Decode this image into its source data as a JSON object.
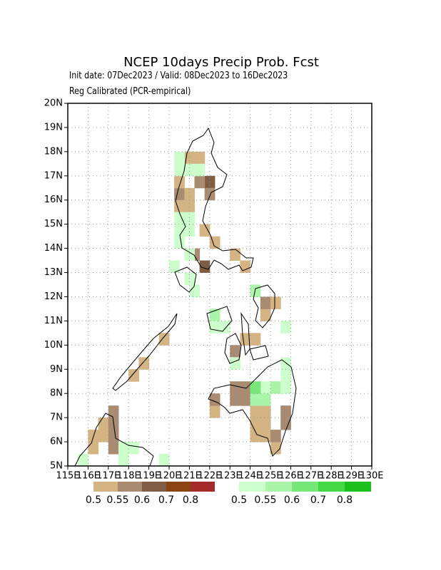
{
  "chart_data": {
    "type": "gridmap",
    "title": "NCEP 10days Precip Prob. Fcst",
    "subtitle": "Init date: 07Dec2023 / Valid: 08Dec2023 to 16Dec2023",
    "subtitle2": "Reg Calibrated (PCR-empirical)",
    "xlim": [
      115,
      130
    ],
    "ylim": [
      5,
      20
    ],
    "xticks": [
      {
        "value": 115,
        "label": "115E"
      },
      {
        "value": 116,
        "label": "116E"
      },
      {
        "value": 117,
        "label": "117E"
      },
      {
        "value": 118,
        "label": "118E"
      },
      {
        "value": 119,
        "label": "119E"
      },
      {
        "value": 120,
        "label": "120E"
      },
      {
        "value": 121,
        "label": "121E"
      },
      {
        "value": 122,
        "label": "122E"
      },
      {
        "value": 123,
        "label": "123E"
      },
      {
        "value": 124,
        "label": "124E"
      },
      {
        "value": 125,
        "label": "125E"
      },
      {
        "value": 126,
        "label": "126E"
      },
      {
        "value": 127,
        "label": "127E"
      },
      {
        "value": 128,
        "label": "128E"
      },
      {
        "value": 129,
        "label": "129E"
      },
      {
        "value": 130,
        "label": "130E"
      }
    ],
    "yticks": [
      {
        "value": 5,
        "label": "5N"
      },
      {
        "value": 6,
        "label": "6N"
      },
      {
        "value": 7,
        "label": "7N"
      },
      {
        "value": 8,
        "label": "8N"
      },
      {
        "value": 9,
        "label": "9N"
      },
      {
        "value": 10,
        "label": "10N"
      },
      {
        "value": 11,
        "label": "11N"
      },
      {
        "value": 12,
        "label": "12N"
      },
      {
        "value": 13,
        "label": "13N"
      },
      {
        "value": 14,
        "label": "14N"
      },
      {
        "value": 15,
        "label": "15N"
      },
      {
        "value": 16,
        "label": "16N"
      },
      {
        "value": 17,
        "label": "17N"
      },
      {
        "value": 18,
        "label": "18N"
      },
      {
        "value": 19,
        "label": "19N"
      },
      {
        "value": 20,
        "label": "20N"
      }
    ],
    "grid": true,
    "levels": [
      0.5,
      0.55,
      0.6,
      0.7,
      0.8
    ],
    "series": [
      {
        "colors": [
          "#d4b483",
          "#a88b70",
          "#7e5d44",
          "#8b4513",
          "#a52a2a"
        ],
        "x": [
          120.75,
          121.25,
          120.25,
          120.75,
          120.25,
          120.75,
          121.75,
          121.25,
          121.75,
          120.25,
          121.5,
          121.0,
          121.5,
          122.0,
          123.0,
          123.5,
          124.5,
          124.5,
          125.0,
          124.0,
          123.5,
          123.0,
          122.0,
          122.0,
          123.0,
          123.5,
          123.5,
          123.0,
          124.0,
          124.0,
          124.0,
          124.5,
          124.5,
          124.5,
          125.0,
          125.0,
          125.5,
          125.5,
          116.0,
          116.0,
          116.5,
          116.5,
          117.0,
          117.0,
          117.0,
          117.0,
          118.0,
          118.5,
          119.5
        ],
        "y": [
          17.5,
          17.5,
          16.0,
          16.0,
          15.5,
          15.5,
          16.5,
          16.5,
          16.0,
          16.5,
          14.5,
          13.5,
          13.0,
          14.0,
          13.5,
          13.0,
          11.0,
          11.5,
          11.5,
          10.0,
          10.0,
          9.5,
          7.0,
          7.5,
          7.5,
          7.5,
          8.0,
          8.0,
          6.0,
          6.5,
          7.0,
          6.0,
          6.5,
          7.0,
          5.5,
          6.0,
          7.0,
          6.5,
          6.0,
          5.5,
          6.5,
          6.0,
          7.0,
          6.5,
          6.0,
          5.5,
          8.5,
          9.0,
          10.0
        ],
        "values": [
          0.52,
          0.52,
          0.57,
          0.52,
          0.52,
          0.52,
          0.65,
          0.57,
          0.57,
          0.52,
          0.52,
          0.57,
          0.65,
          0.52,
          0.52,
          0.52,
          0.52,
          0.57,
          0.52,
          0.52,
          0.52,
          0.57,
          0.52,
          0.57,
          0.57,
          0.57,
          0.57,
          0.57,
          0.52,
          0.52,
          0.52,
          0.52,
          0.52,
          0.52,
          0.52,
          0.57,
          0.57,
          0.57,
          0.52,
          0.52,
          0.52,
          0.52,
          0.57,
          0.57,
          0.57,
          0.57,
          0.52,
          0.52,
          0.52
        ]
      },
      {
        "colors": [
          "#ccffcc",
          "#aaf5aa",
          "#77e777",
          "#44d844",
          "#1dbf1d"
        ],
        "x": [
          120.25,
          120.25,
          120.75,
          121.25,
          120.25,
          120.75,
          120.25,
          120.75,
          120.25,
          120.75,
          120.0,
          120.75,
          121.0,
          122.0,
          122.0,
          122.5,
          123.0,
          124.0,
          125.5,
          125.5,
          125.5,
          124.5,
          124.0,
          125.0,
          125.5,
          117.5,
          118.0,
          117.5,
          119.5,
          115.5,
          124.0,
          124.5
        ],
        "y": [
          17.5,
          17.0,
          17.0,
          17.0,
          15.0,
          15.0,
          14.5,
          14.5,
          14.0,
          13.5,
          13.0,
          12.5,
          12.0,
          11.0,
          10.5,
          10.5,
          9.0,
          12.0,
          10.5,
          9.0,
          8.5,
          8.0,
          7.5,
          8.0,
          8.0,
          5.5,
          5.5,
          5.0,
          5.0,
          5.0,
          8.0,
          7.5
        ],
        "values": [
          0.52,
          0.52,
          0.52,
          0.52,
          0.52,
          0.52,
          0.52,
          0.52,
          0.52,
          0.52,
          0.52,
          0.52,
          0.52,
          0.57,
          0.52,
          0.52,
          0.52,
          0.57,
          0.52,
          0.52,
          0.52,
          0.52,
          0.57,
          0.57,
          0.52,
          0.52,
          0.52,
          0.52,
          0.52,
          0.52,
          0.65,
          0.57
        ]
      }
    ]
  }
}
